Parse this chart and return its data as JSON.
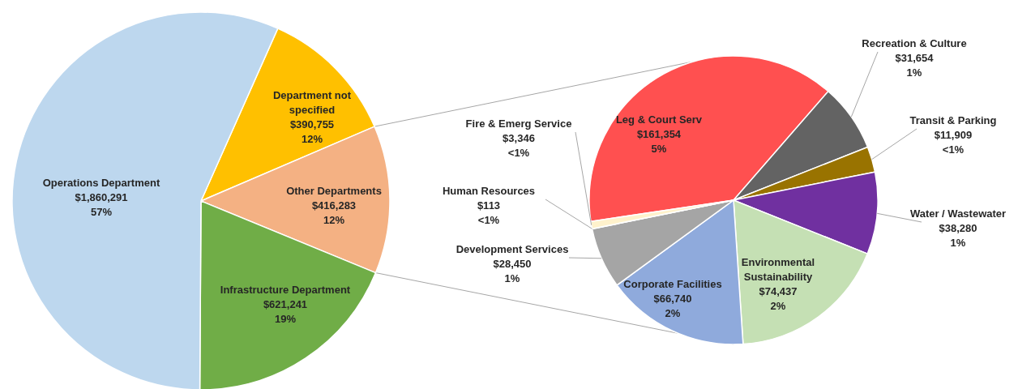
{
  "chart_data": [
    {
      "type": "pie",
      "categories": [
        "Department not specified",
        "Other Departments",
        "Infrastructure Department",
        "Operations Department"
      ],
      "values": [
        390755,
        416283,
        621241,
        1860291
      ],
      "colors": [
        "#ffc000",
        "#f4b183",
        "#70ad47",
        "#bdd7ee"
      ],
      "value_labels": [
        "$390,755\n12%",
        "$416,283\n12%",
        "$621,241\n19%",
        "$1,860,291\n57%"
      ]
    },
    {
      "type": "pie",
      "categories": [
        "Leg & Court Serv",
        "Recreation & Culture",
        "Transit & Parking",
        "Water / Wastewater",
        "Environmental Sustainability",
        "Corporate Facilities",
        "Development Services",
        "Human Resources",
        "Fire & Emerg Service"
      ],
      "values": [
        161354,
        31654,
        11909,
        38280,
        74437,
        66740,
        28450,
        113,
        3346
      ],
      "colors": [
        "#ff5050",
        "#636363",
        "#997300",
        "#7030a0",
        "#c5e0b4",
        "#8faadc",
        "#a5a5a5",
        "#ffffff",
        "#fff2cc"
      ],
      "value_labels": [
        "$161,354\n5%",
        "$31,654\n1%",
        "$11,909\n<1%",
        "$38,280\n1%",
        "$74,437\n2%",
        "$66,740\n2%",
        "$28,450\n1%",
        "$113\n<1%",
        "$3,346\n<1%"
      ]
    }
  ]
}
